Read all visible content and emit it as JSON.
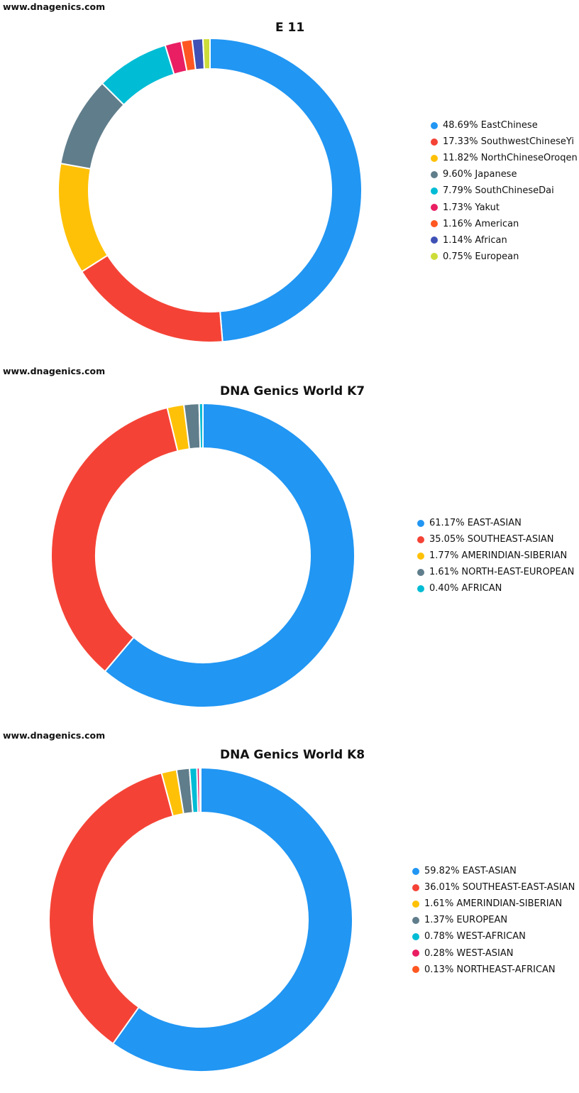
{
  "chart_data": [
    {
      "type": "pie",
      "watermark": "www.dnagenics.com",
      "title": "E 11",
      "legend_position": "right",
      "slices": [
        {
          "label": "48.69% EastChinese",
          "value": 48.69,
          "color": "#2196F3"
        },
        {
          "label": "17.33% SouthwestChineseYi",
          "value": 17.33,
          "color": "#F44336"
        },
        {
          "label": "11.82% NorthChineseOroqen",
          "value": 11.82,
          "color": "#FFC107"
        },
        {
          "label": "9.60% Japanese",
          "value": 9.6,
          "color": "#607D8B"
        },
        {
          "label": "7.79% SouthChineseDai",
          "value": 7.79,
          "color": "#00BCD4"
        },
        {
          "label": "1.73% Yakut",
          "value": 1.73,
          "color": "#E91E63"
        },
        {
          "label": "1.16% American",
          "value": 1.16,
          "color": "#FF5722"
        },
        {
          "label": "1.14% African",
          "value": 1.14,
          "color": "#3F51B5"
        },
        {
          "label": "0.75% European",
          "value": 0.75,
          "color": "#CDDC39"
        }
      ]
    },
    {
      "type": "pie",
      "watermark": "www.dnagenics.com",
      "title": "DNA Genics World K7",
      "legend_position": "right",
      "slices": [
        {
          "label": "61.17% EAST-ASIAN",
          "value": 61.17,
          "color": "#2196F3"
        },
        {
          "label": "35.05% SOUTHEAST-ASIAN",
          "value": 35.05,
          "color": "#F44336"
        },
        {
          "label": "1.77% AMERINDIAN-SIBERIAN",
          "value": 1.77,
          "color": "#FFC107"
        },
        {
          "label": "1.61% NORTH-EAST-EUROPEAN",
          "value": 1.61,
          "color": "#607D8B"
        },
        {
          "label": "0.40% AFRICAN",
          "value": 0.4,
          "color": "#00BCD4"
        }
      ]
    },
    {
      "type": "pie",
      "watermark": "www.dnagenics.com",
      "title": "DNA Genics World K8",
      "legend_position": "right",
      "slices": [
        {
          "label": "59.82% EAST-ASIAN",
          "value": 59.82,
          "color": "#2196F3"
        },
        {
          "label": "36.01% SOUTHEAST-EAST-ASIAN",
          "value": 36.01,
          "color": "#F44336"
        },
        {
          "label": "1.61% AMERINDIAN-SIBERIAN",
          "value": 1.61,
          "color": "#FFC107"
        },
        {
          "label": "1.37% EUROPEAN",
          "value": 1.37,
          "color": "#607D8B"
        },
        {
          "label": "0.78% WEST-AFRICAN",
          "value": 0.78,
          "color": "#00BCD4"
        },
        {
          "label": "0.28% WEST-ASIAN",
          "value": 0.28,
          "color": "#E91E63"
        },
        {
          "label": "0.13% NORTHEAST-AFRICAN",
          "value": 0.13,
          "color": "#FF5722"
        }
      ]
    }
  ]
}
